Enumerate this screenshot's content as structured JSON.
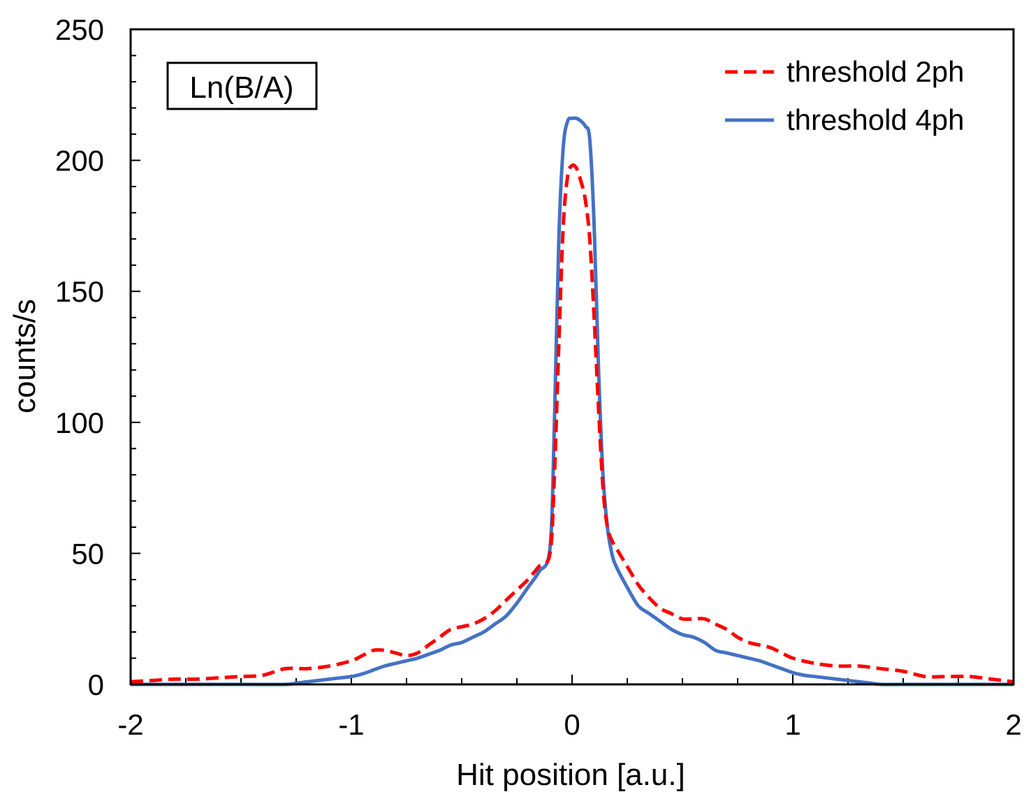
{
  "chart_data": {
    "type": "line",
    "title": "",
    "xlabel": "Hit position [a.u.]",
    "ylabel": "counts/s",
    "xlim": [
      -2,
      2
    ],
    "ylim": [
      0,
      250
    ],
    "xticks": [
      -2,
      -1,
      0,
      1,
      2
    ],
    "xtick_labels": [
      "-2",
      "-1",
      "0",
      "1",
      "2"
    ],
    "yticks": [
      0,
      50,
      100,
      150,
      200,
      250
    ],
    "ytick_labels": [
      "0",
      "50",
      "100",
      "150",
      "200",
      "250"
    ],
    "grid": false,
    "legend_position": "top-right",
    "annotation": "Ln(B/A)",
    "series": [
      {
        "name": "threshold 2ph",
        "color": "#ff0000",
        "style": "dashed",
        "x": [
          -2.0,
          -1.9,
          -1.8,
          -1.7,
          -1.6,
          -1.5,
          -1.4,
          -1.3,
          -1.2,
          -1.1,
          -1.0,
          -0.95,
          -0.9,
          -0.85,
          -0.8,
          -0.75,
          -0.7,
          -0.65,
          -0.6,
          -0.55,
          -0.5,
          -0.45,
          -0.4,
          -0.35,
          -0.3,
          -0.25,
          -0.2,
          -0.15,
          -0.1,
          -0.08,
          -0.06,
          -0.04,
          -0.02,
          0.0,
          0.02,
          0.04,
          0.06,
          0.08,
          0.1,
          0.12,
          0.14,
          0.16,
          0.18,
          0.2,
          0.25,
          0.3,
          0.35,
          0.4,
          0.45,
          0.5,
          0.55,
          0.6,
          0.65,
          0.7,
          0.75,
          0.8,
          0.85,
          0.9,
          0.95,
          1.0,
          1.1,
          1.2,
          1.3,
          1.4,
          1.5,
          1.6,
          1.7,
          1.8,
          1.9,
          2.0
        ],
        "y": [
          1,
          1.5,
          2,
          2,
          2.5,
          3,
          3.5,
          6,
          6,
          7,
          9,
          11,
          13,
          13,
          12,
          11,
          12,
          15,
          18,
          21,
          22,
          23,
          25,
          28,
          32,
          36,
          40,
          45,
          50,
          80,
          130,
          175,
          194,
          198,
          197,
          192,
          185,
          170,
          140,
          105,
          75,
          60,
          55,
          52,
          45,
          38,
          33,
          29,
          27,
          25,
          25,
          25,
          23,
          21,
          18,
          16,
          15,
          14,
          12,
          10,
          8,
          7,
          7,
          6,
          5,
          3,
          3,
          3,
          2,
          1
        ]
      },
      {
        "name": "threshold 4ph",
        "color": "#4472c4",
        "style": "solid",
        "x": [
          -2.0,
          -1.5,
          -1.3,
          -1.25,
          -1.2,
          -1.15,
          -1.1,
          -1.05,
          -1.0,
          -0.95,
          -0.9,
          -0.85,
          -0.8,
          -0.75,
          -0.7,
          -0.65,
          -0.6,
          -0.55,
          -0.5,
          -0.45,
          -0.4,
          -0.35,
          -0.3,
          -0.25,
          -0.2,
          -0.15,
          -0.1,
          -0.08,
          -0.06,
          -0.04,
          -0.02,
          0.0,
          0.02,
          0.04,
          0.06,
          0.08,
          0.1,
          0.12,
          0.14,
          0.16,
          0.18,
          0.2,
          0.25,
          0.3,
          0.35,
          0.4,
          0.45,
          0.5,
          0.55,
          0.6,
          0.65,
          0.7,
          0.75,
          0.8,
          0.85,
          0.9,
          0.95,
          1.0,
          1.05,
          1.1,
          1.15,
          1.2,
          1.25,
          1.3,
          1.35,
          1.4,
          1.5,
          2.0
        ],
        "y": [
          0,
          0,
          0,
          0.5,
          1,
          1.5,
          2,
          2.5,
          3,
          4,
          5.5,
          7,
          8,
          9,
          10,
          11.5,
          13,
          15,
          16,
          18,
          20,
          23,
          26,
          31,
          37,
          43,
          52,
          100,
          170,
          205,
          215,
          216,
          216,
          215,
          213,
          208,
          175,
          120,
          80,
          60,
          50,
          45,
          37,
          30,
          27,
          24,
          21,
          19,
          18,
          16,
          13,
          12,
          11,
          10,
          9,
          7.5,
          6,
          4.5,
          3.5,
          3,
          2.5,
          2,
          1.5,
          1,
          0.5,
          0,
          0,
          0
        ]
      }
    ]
  }
}
